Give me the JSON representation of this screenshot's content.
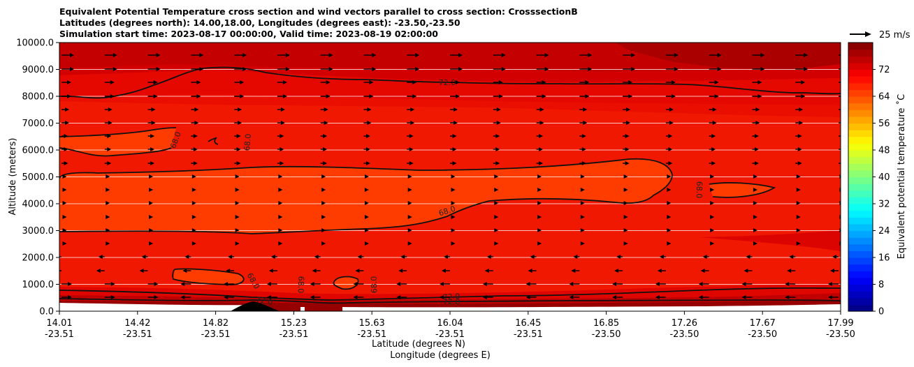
{
  "title": {
    "line1": "Equivalent Potential Temperature cross section and wind vectors parallel to cross section: CrosssectionB",
    "line2": "Latitudes (degrees north): 14.00,18.00, Longitudes (degrees east): -23.50,-23.50",
    "line3": "Simulation start time: 2023-08-17 00:00:00, Valid time: 2023-08-19 02:00:00"
  },
  "chart_data": {
    "type": "heatmap",
    "ylabel": "Altitude (meters)",
    "xlabel_lat": "Latitude (degrees N)",
    "xlabel_lon": "Longitude (degrees E)",
    "ylim": [
      0,
      10000
    ],
    "y_ticks": [
      "0.0",
      "1000.0",
      "2000.0",
      "3000.0",
      "4000.0",
      "5000.0",
      "6000.0",
      "7000.0",
      "8000.0",
      "9000.0",
      "10000.0"
    ],
    "x_ticks_lat": [
      "14.01",
      "14.42",
      "14.82",
      "15.23",
      "15.63",
      "16.04",
      "16.45",
      "16.85",
      "17.26",
      "17.67",
      "17.99"
    ],
    "x_ticks_lon": [
      "-23.51",
      "-23.51",
      "-23.51",
      "-23.51",
      "-23.51",
      "-23.51",
      "-23.51",
      "-23.50",
      "-23.50",
      "-23.50",
      "-23.50"
    ],
    "grid": "horizontal",
    "colorbar": {
      "label": "Equivalent potential temperature $^\\circ$C",
      "label_display": "Equivalent potential temperature ˚C",
      "ticks": [
        "0",
        "8",
        "16",
        "24",
        "32",
        "40",
        "48",
        "56",
        "64",
        "72"
      ],
      "range": [
        0,
        80
      ],
      "colormap": "jet"
    },
    "quiver_key": "25 m/s",
    "contour_labels": [
      "72.0",
      "68.0",
      "68.0",
      "68.0",
      "68.0",
      "68.0",
      "68.0",
      "68.0",
      "72.0",
      "72.0",
      "72.0"
    ]
  }
}
